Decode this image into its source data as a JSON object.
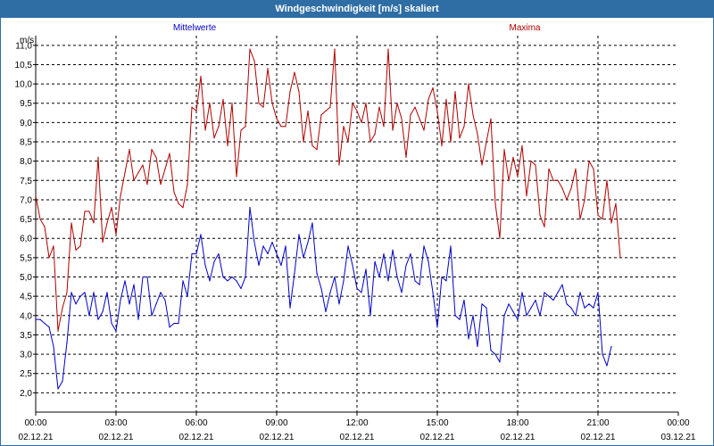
{
  "window": {
    "title": "Windgeschwindigkeit [m/s] skaliert"
  },
  "colors": {
    "mean": "#0000c8",
    "max": "#b00000",
    "grid": "#000000",
    "titlebar": "#2f6ea5"
  },
  "chart_data": {
    "type": "line",
    "title": "Windgeschwindigkeit [m/s] skaliert",
    "ylabel": "m/s",
    "xlabel": "",
    "ylim": [
      1.5,
      11.25
    ],
    "xlim": [
      0,
      1440
    ],
    "grid": true,
    "legend": "top",
    "y_ticks": [
      "2,0",
      "2,5",
      "3,0",
      "3,5",
      "4,0",
      "4,5",
      "5,0",
      "5,5",
      "6,0",
      "6,5",
      "7,0",
      "7,5",
      "8,0",
      "8,5",
      "9,0",
      "9,5",
      "10,0",
      "10,5",
      "11,0"
    ],
    "x_ticks": [
      {
        "time": "00:00",
        "date": "02.12.21"
      },
      {
        "time": "03:00",
        "date": "02.12.21"
      },
      {
        "time": "06:00",
        "date": "02.12.21"
      },
      {
        "time": "09:00",
        "date": "02.12.21"
      },
      {
        "time": "12:00",
        "date": "02.12.21"
      },
      {
        "time": "15:00",
        "date": "02.12.21"
      },
      {
        "time": "18:00",
        "date": "02.12.21"
      },
      {
        "time": "21:00",
        "date": "02.12.21"
      },
      {
        "time": "00:00",
        "date": "03.12.21"
      }
    ],
    "sample_interval_minutes": 10,
    "series": [
      {
        "name": "Mittelwerte",
        "color": "#0000c8",
        "values": [
          3.9,
          3.9,
          3.8,
          3.7,
          3.2,
          2.1,
          2.3,
          3.3,
          4.6,
          4.3,
          4.5,
          4.6,
          4.0,
          4.6,
          3.9,
          4.1,
          4.6,
          3.8,
          3.6,
          4.4,
          4.9,
          4.3,
          4.8,
          3.9,
          5.0,
          5.0,
          4.0,
          4.3,
          4.6,
          4.4,
          3.7,
          3.8,
          3.8,
          4.9,
          4.5,
          5.6,
          5.6,
          6.1,
          5.3,
          4.9,
          5.4,
          5.6,
          5.0,
          4.9,
          5.0,
          4.9,
          4.7,
          5.0,
          6.8,
          5.9,
          5.3,
          5.8,
          5.6,
          5.9,
          5.6,
          5.3,
          5.8,
          4.2,
          5.1,
          6.1,
          5.5,
          5.9,
          6.4,
          5.1,
          4.7,
          4.1,
          4.6,
          5.0,
          4.3,
          4.9,
          5.8,
          5.3,
          4.7,
          4.6,
          5.2,
          4.0,
          5.4,
          5.0,
          5.6,
          4.9,
          5.7,
          5.0,
          4.6,
          5.3,
          5.6,
          4.9,
          4.8,
          5.8,
          5.4,
          4.6,
          3.7,
          5.0,
          4.9,
          5.8,
          4.0,
          3.9,
          4.4,
          3.4,
          4.0,
          3.2,
          4.3,
          4.2,
          3.1,
          3.0,
          2.8,
          4.0,
          4.3,
          4.1,
          3.9,
          4.6,
          4.0,
          4.2,
          4.4,
          4.0,
          4.6,
          4.5,
          4.4,
          4.6,
          4.8,
          4.3,
          4.2,
          4.0,
          4.6,
          4.2,
          4.3,
          4.2,
          4.6,
          3.0,
          2.7,
          3.2
        ]
      },
      {
        "name": "Maxima",
        "color": "#b00000",
        "values": [
          7.1,
          6.5,
          6.3,
          5.5,
          5.8,
          3.6,
          4.2,
          4.6,
          6.4,
          5.7,
          5.8,
          6.7,
          6.7,
          6.4,
          8.1,
          5.9,
          6.4,
          6.8,
          6.1,
          7.1,
          7.7,
          8.3,
          7.5,
          7.7,
          7.9,
          7.4,
          8.3,
          8.1,
          7.4,
          7.8,
          8.2,
          7.2,
          6.9,
          6.8,
          7.4,
          9.4,
          9.3,
          10.2,
          8.8,
          9.5,
          8.6,
          8.9,
          9.6,
          8.4,
          9.5,
          7.6,
          8.8,
          8.9,
          10.9,
          10.6,
          9.5,
          9.4,
          10.4,
          9.5,
          9.1,
          8.9,
          8.9,
          9.8,
          10.3,
          9.8,
          8.5,
          9.3,
          8.4,
          8.3,
          9.2,
          9.3,
          9.4,
          10.9,
          7.9,
          8.9,
          8.5,
          9.5,
          9.3,
          9.0,
          9.5,
          8.5,
          8.7,
          9.4,
          8.9,
          10.9,
          8.8,
          9.5,
          9.1,
          8.1,
          9.2,
          9.4,
          9.1,
          8.8,
          9.6,
          9.9,
          9.3,
          8.4,
          9.6,
          8.5,
          9.8,
          8.6,
          8.9,
          10.0,
          9.2,
          8.7,
          7.9,
          8.5,
          9.1,
          6.9,
          6.0,
          8.3,
          7.5,
          8.1,
          7.6,
          8.4,
          7.1,
          8.0,
          7.9,
          6.6,
          6.3,
          7.8,
          7.5,
          7.5,
          7.3,
          7.0,
          7.3,
          7.8,
          6.5,
          7.0,
          8.0,
          7.8,
          6.6,
          6.5,
          7.5,
          6.4,
          6.9,
          5.5
        ]
      }
    ]
  }
}
